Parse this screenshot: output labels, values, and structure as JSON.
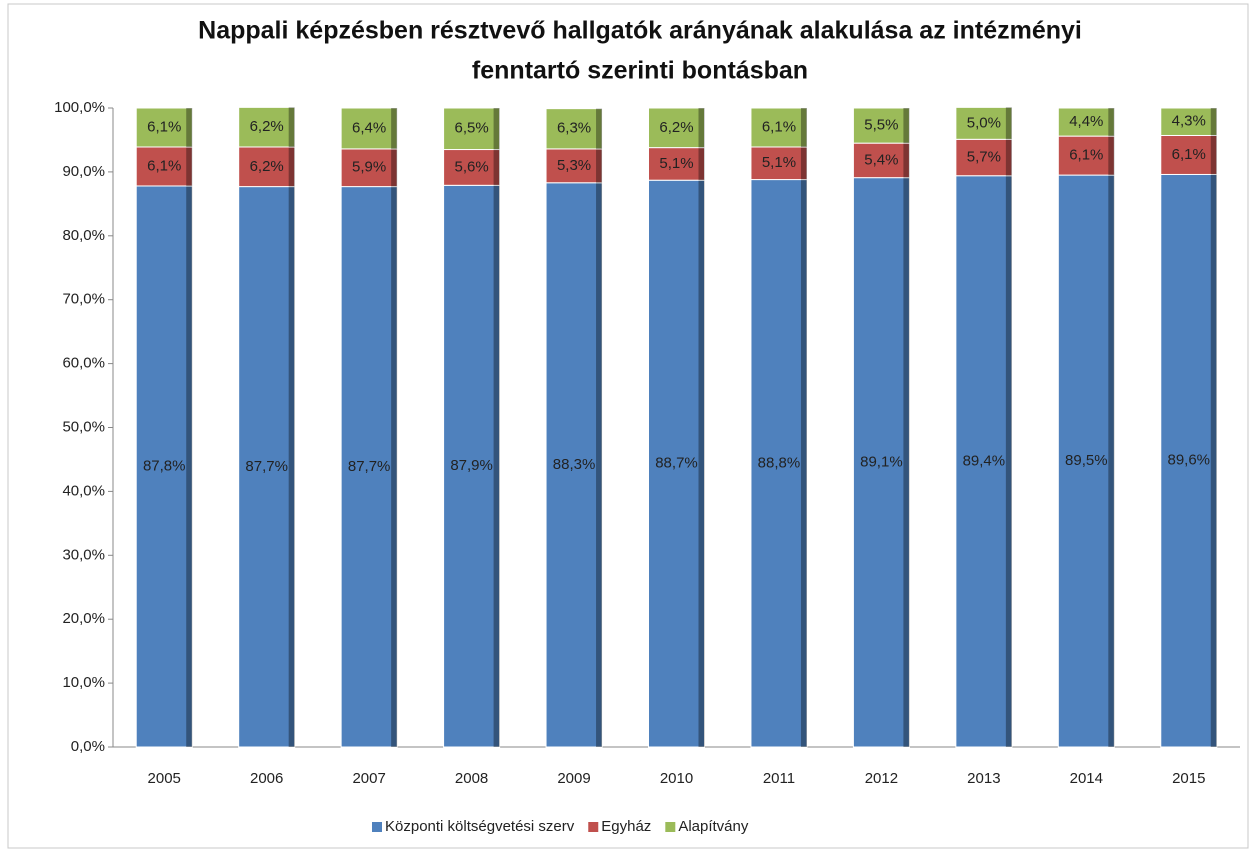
{
  "chart_data": {
    "type": "stacked_bar",
    "title": [
      "Nappali képzésben résztvevő hallgatók arányának alakulása az intézményi",
      "fenntartó  szerinti bontásban"
    ],
    "categories": [
      "2005",
      "2006",
      "2007",
      "2008",
      "2009",
      "2010",
      "2011",
      "2012",
      "2013",
      "2014",
      "2015"
    ],
    "series": [
      {
        "name": "Központi költségvetési szerv",
        "color": "#4f81bd",
        "values": [
          87.8,
          87.7,
          87.7,
          87.9,
          88.3,
          88.7,
          88.8,
          89.1,
          89.4,
          89.5,
          89.6
        ],
        "value_labels": [
          "87,8%",
          "87,7%",
          "87,7%",
          "87,9%",
          "88,3%",
          "88,7%",
          "88,8%",
          "89,1%",
          "89,4%",
          "89,5%",
          "89,6%"
        ]
      },
      {
        "name": "Egyház",
        "color": "#c0504d",
        "values": [
          6.1,
          6.2,
          5.9,
          5.6,
          5.3,
          5.1,
          5.1,
          5.4,
          5.7,
          6.1,
          6.1
        ],
        "value_labels": [
          "6,1%",
          "6,2%",
          "5,9%",
          "5,6%",
          "5,3%",
          "5,1%",
          "5,1%",
          "5,4%",
          "5,7%",
          "6,1%",
          "6,1%"
        ]
      },
      {
        "name": "Alapítvány",
        "color": "#9bbb59",
        "values": [
          6.1,
          6.2,
          6.4,
          6.5,
          6.3,
          6.2,
          6.1,
          5.5,
          5.0,
          4.4,
          4.3
        ],
        "value_labels": [
          "6,1%",
          "6,2%",
          "6,4%",
          "6,5%",
          "6,3%",
          "6,2%",
          "6,1%",
          "5,5%",
          "5,0%",
          "4,4%",
          "4,3%"
        ]
      }
    ],
    "ylim": [
      0,
      100
    ],
    "yticks": [
      {
        "value": 0,
        "label": "0,0%"
      },
      {
        "value": 10,
        "label": "10,0%"
      },
      {
        "value": 20,
        "label": "20,0%"
      },
      {
        "value": 30,
        "label": "30,0%"
      },
      {
        "value": 40,
        "label": "40,0%"
      },
      {
        "value": 50,
        "label": "50,0%"
      },
      {
        "value": 60,
        "label": "60,0%"
      },
      {
        "value": 70,
        "label": "70,0%"
      },
      {
        "value": 80,
        "label": "80,0%"
      },
      {
        "value": 90,
        "label": "90,0%"
      },
      {
        "value": 100,
        "label": "100,0%"
      }
    ],
    "legend": "bottom"
  }
}
